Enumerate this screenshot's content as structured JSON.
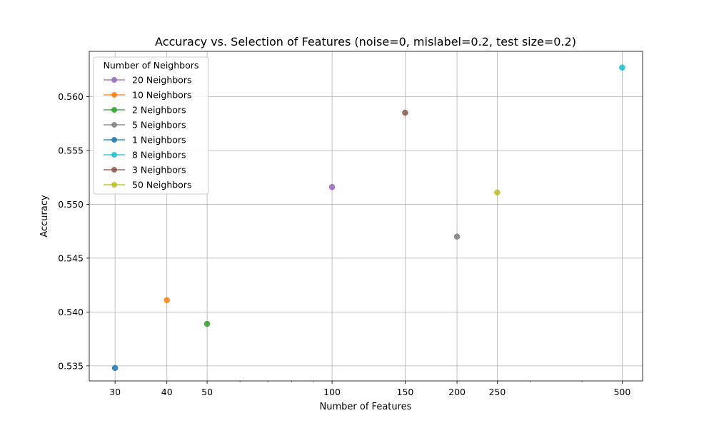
{
  "chart_data": {
    "type": "scatter",
    "title": "Accuracy vs. Selection of Features (noise=0, mislabel=0.2, test size=0.2)",
    "xlabel": "Number of Features",
    "ylabel": "Accuracy",
    "xscale": "log",
    "xlim": [
      26,
      560
    ],
    "ylim": [
      0.5336,
      0.5642
    ],
    "xticks": [
      30,
      40,
      50,
      100,
      150,
      200,
      250,
      500
    ],
    "yticks": [
      0.535,
      0.54,
      0.545,
      0.55,
      0.555,
      0.56
    ],
    "ytick_labels": [
      "0.535",
      "0.540",
      "0.545",
      "0.550",
      "0.555",
      "0.560"
    ],
    "grid": true,
    "legend": {
      "title": "Number of Neighbors",
      "placement": "top-left"
    },
    "series": [
      {
        "name": "20 Neighbors",
        "color": "#9467bd",
        "x": [
          100
        ],
        "y": [
          0.5516
        ]
      },
      {
        "name": "10 Neighbors",
        "color": "#ff7f0e",
        "x": [
          40
        ],
        "y": [
          0.5411
        ]
      },
      {
        "name": "2 Neighbors",
        "color": "#2ca02c",
        "x": [
          50
        ],
        "y": [
          0.5389
        ]
      },
      {
        "name": "5 Neighbors",
        "color": "#7f7f7f",
        "x": [
          200
        ],
        "y": [
          0.547
        ]
      },
      {
        "name": "1 Neighbors",
        "color": "#1f77b4",
        "x": [
          30
        ],
        "y": [
          0.5348
        ]
      },
      {
        "name": "8 Neighbors",
        "color": "#17becf",
        "x": [
          500
        ],
        "y": [
          0.5627
        ]
      },
      {
        "name": "3 Neighbors",
        "color": "#8c564b",
        "x": [
          150
        ],
        "y": [
          0.5585
        ]
      },
      {
        "name": "50 Neighbors",
        "color": "#bcbd22",
        "x": [
          250
        ],
        "y": [
          0.5511
        ]
      }
    ]
  }
}
